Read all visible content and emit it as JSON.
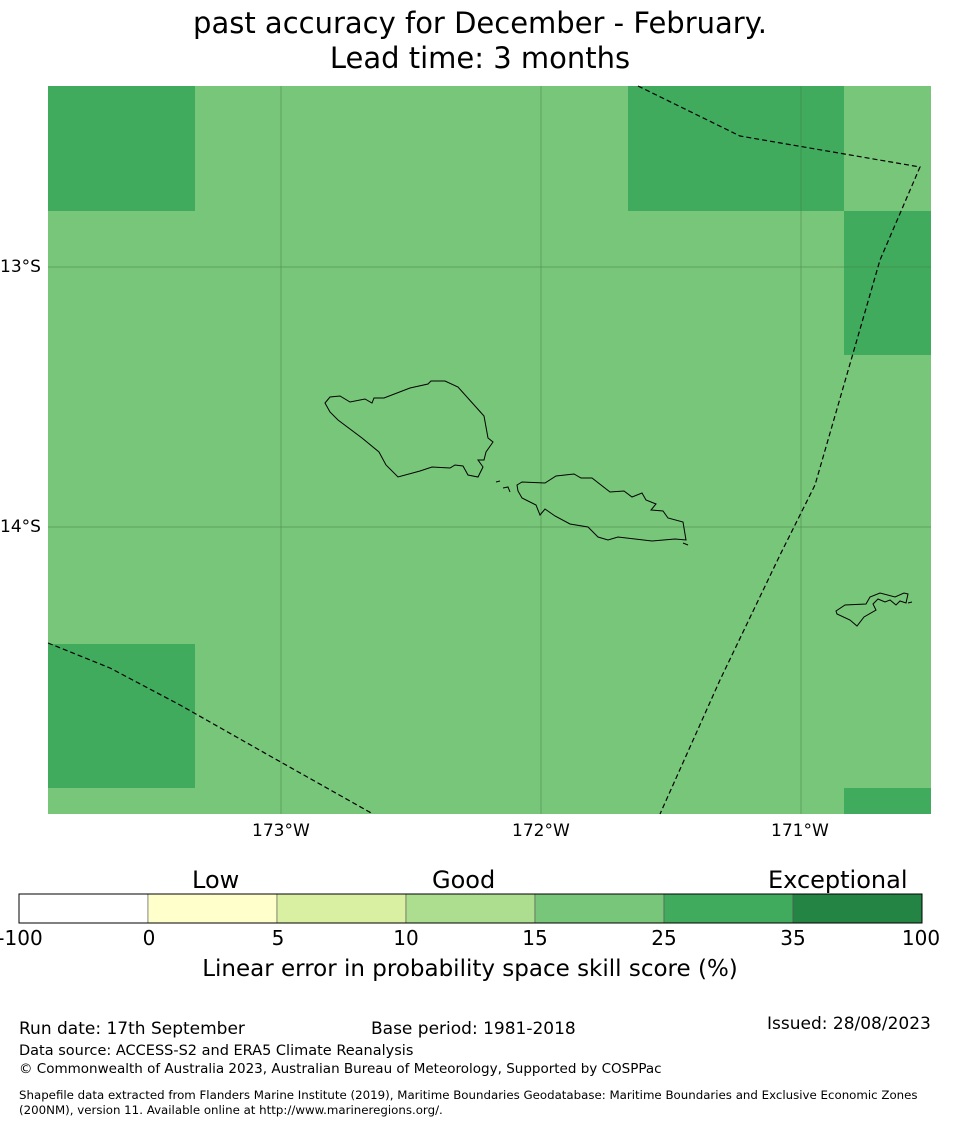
{
  "title": {
    "line1": "past accuracy for December - February.",
    "line2": "Lead time: 3 months"
  },
  "map": {
    "lat_labels": [
      "13°S",
      "14°S"
    ],
    "lon_labels": [
      "173°W",
      "172°W",
      "171°W"
    ],
    "colors": {
      "tier_15_25": "#78c679",
      "tier_25_35": "#41ab5d"
    }
  },
  "colorbar": {
    "categories": [
      "Low",
      "Good",
      "Exceptional"
    ],
    "ticks": [
      "-100",
      "0",
      "5",
      "10",
      "15",
      "25",
      "35",
      "100"
    ],
    "colors": [
      "#ffffff",
      "#ffffcc",
      "#d9f0a3",
      "#addd8e",
      "#78c679",
      "#41ab5d",
      "#238443"
    ],
    "label": "Linear error in probability space skill score (%)"
  },
  "footer": {
    "run_date": "Run date: 17th September",
    "base_period": "Base period: 1981-2018",
    "issued": "Issued: 28/08/2023",
    "data_source": "Data source: ACCESS-S2 and ERA5 Climate Reanalysis",
    "copyright": "© Commonwealth of Australia 2023, Australian Bureau of Meteorology, Supported by COSPPac",
    "shapefile_1": "Shapefile data extracted from Flanders Marine Institute (2019), Maritime Boundaries Geodatabase: Maritime Boundaries and Exclusive Economic Zones",
    "shapefile_2": "(200NM), version 11. Available online at http://www.marineregions.org/."
  }
}
